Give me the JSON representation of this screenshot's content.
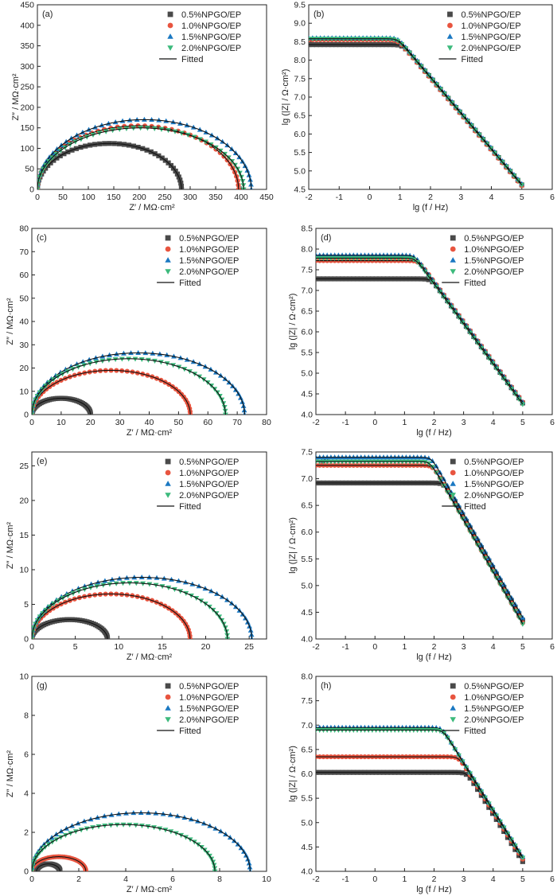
{
  "figure": {
    "colors": {
      "0.5%NPGO/EP": "#4a4a4a",
      "1.0%NPGO/EP": "#e8543f",
      "1.5%NPGO/EP": "#1a78c2",
      "2.0%NPGO/EP": "#3cba7c",
      "Fitted": "#111111"
    },
    "legend_labels": [
      "0.5%NPGO/EP",
      "1.0%NPGO/EP",
      "1.5%NPGO/EP",
      "2.0%NPGO/EP",
      "Fitted"
    ]
  },
  "chart_data": [
    {
      "id": "a",
      "panel_label": "(a)",
      "type": "scatter",
      "kind": "nyquist",
      "xlabel": "Z′ / MΩ·cm²",
      "ylabel": "Z″ / MΩ·cm²",
      "xlim": [
        0,
        450
      ],
      "ylim": [
        0,
        450
      ],
      "xticks": [
        0,
        50,
        100,
        150,
        200,
        250,
        300,
        350,
        400,
        450
      ],
      "yticks": [
        0,
        50,
        100,
        150,
        200,
        250,
        300,
        350,
        400,
        450
      ],
      "legend": "top-right",
      "series": [
        {
          "name": "0.5%NPGO/EP",
          "marker": "square",
          "r0": 0,
          "diameter": 283,
          "peak": 112
        },
        {
          "name": "1.0%NPGO/EP",
          "marker": "circle",
          "r0": 0,
          "diameter": 395,
          "peak": 155
        },
        {
          "name": "1.5%NPGO/EP",
          "marker": "triangle-up",
          "r0": 0,
          "diameter": 420,
          "peak": 170
        },
        {
          "name": "2.0%NPGO/EP",
          "marker": "triangle-down",
          "r0": 0,
          "diameter": 405,
          "peak": 150
        }
      ],
      "fitted": true
    },
    {
      "id": "b",
      "panel_label": "(b)",
      "type": "scatter",
      "kind": "bode",
      "xlabel": "lg (f / Hz)",
      "ylabel": "lg (|Z| / Ω·cm²)",
      "xlim": [
        -2,
        6
      ],
      "ylim": [
        4.5,
        9.5
      ],
      "xticks": [
        -2,
        -1,
        0,
        1,
        2,
        3,
        4,
        5,
        6
      ],
      "yticks": [
        4.5,
        5.0,
        5.5,
        6.0,
        6.5,
        7.0,
        7.5,
        8.0,
        8.5,
        9.0,
        9.5
      ],
      "legend": "top-right",
      "series": [
        {
          "name": "0.5%NPGO/EP",
          "marker": "square",
          "plateau": 8.42,
          "end": 4.62
        },
        {
          "name": "1.0%NPGO/EP",
          "marker": "circle",
          "plateau": 8.55,
          "end": 4.6
        },
        {
          "name": "1.5%NPGO/EP",
          "marker": "triangle-up",
          "plateau": 8.6,
          "end": 4.65
        },
        {
          "name": "2.0%NPGO/EP",
          "marker": "triangle-down",
          "plateau": 8.58,
          "end": 4.62
        }
      ],
      "fitted": true
    },
    {
      "id": "c",
      "panel_label": "(c)",
      "type": "scatter",
      "kind": "nyquist",
      "xlabel": "Z′ / MΩ·cm²",
      "ylabel": "Z″ / MΩ·cm²",
      "xlim": [
        0,
        80
      ],
      "ylim": [
        0,
        80
      ],
      "xticks": [
        0,
        10,
        20,
        30,
        40,
        50,
        60,
        70,
        80
      ],
      "yticks": [
        0,
        10,
        20,
        30,
        40,
        50,
        60,
        70,
        80
      ],
      "legend": "top-right",
      "series": [
        {
          "name": "0.5%NPGO/EP",
          "marker": "square",
          "r0": 0,
          "diameter": 20,
          "peak": 7
        },
        {
          "name": "1.0%NPGO/EP",
          "marker": "circle",
          "r0": 0,
          "diameter": 54,
          "peak": 19
        },
        {
          "name": "1.5%NPGO/EP",
          "marker": "triangle-up",
          "r0": 0,
          "diameter": 72.5,
          "peak": 26.5
        },
        {
          "name": "2.0%NPGO/EP",
          "marker": "triangle-down",
          "r0": 0,
          "diameter": 66,
          "peak": 24
        }
      ],
      "fitted": true
    },
    {
      "id": "d",
      "panel_label": "(d)",
      "type": "scatter",
      "kind": "bode",
      "xlabel": "lg (f / Hz)",
      "ylabel": "lg (|Z| / Ω·cm²)",
      "xlim": [
        -2,
        6
      ],
      "ylim": [
        4.0,
        8.5
      ],
      "xticks": [
        -2,
        -1,
        0,
        1,
        2,
        3,
        4,
        5,
        6
      ],
      "yticks": [
        4.0,
        4.5,
        5.0,
        5.5,
        6.0,
        6.5,
        7.0,
        7.5,
        8.0,
        8.5
      ],
      "legend": "top-right",
      "series": [
        {
          "name": "0.5%NPGO/EP",
          "marker": "square",
          "plateau": 7.28,
          "end": 4.28
        },
        {
          "name": "1.0%NPGO/EP",
          "marker": "circle",
          "plateau": 7.72,
          "end": 4.3
        },
        {
          "name": "1.5%NPGO/EP",
          "marker": "triangle-up",
          "plateau": 7.85,
          "end": 4.3
        },
        {
          "name": "2.0%NPGO/EP",
          "marker": "triangle-down",
          "plateau": 7.78,
          "end": 4.25
        }
      ],
      "fitted": true
    },
    {
      "id": "e",
      "panel_label": "(e)",
      "type": "scatter",
      "kind": "nyquist",
      "xlabel": "Z′ / MΩ·cm²",
      "ylabel": "Z″ / MΩ·cm²",
      "xlim": [
        0,
        27
      ],
      "ylim": [
        0,
        27
      ],
      "xticks": [
        0,
        5,
        10,
        15,
        20,
        25
      ],
      "yticks": [
        0,
        5,
        10,
        15,
        20,
        25
      ],
      "legend": "top-right",
      "series": [
        {
          "name": "0.5%NPGO/EP",
          "marker": "square",
          "r0": 0,
          "diameter": 8.7,
          "peak": 2.8
        },
        {
          "name": "1.0%NPGO/EP",
          "marker": "circle",
          "r0": 0,
          "diameter": 18.2,
          "peak": 6.5
        },
        {
          "name": "1.5%NPGO/EP",
          "marker": "triangle-up",
          "r0": 0,
          "diameter": 25.3,
          "peak": 8.9
        },
        {
          "name": "2.0%NPGO/EP",
          "marker": "triangle-down",
          "r0": 0,
          "diameter": 22.5,
          "peak": 8.1
        }
      ],
      "fitted": true
    },
    {
      "id": "f",
      "panel_label": "(f)",
      "type": "scatter",
      "kind": "bode",
      "xlabel": "lg (f / Hz)",
      "ylabel": "lg (|Z| / Ω·cm²)",
      "xlim": [
        -2,
        6
      ],
      "ylim": [
        4.0,
        7.5
      ],
      "xticks": [
        -2,
        -1,
        0,
        1,
        2,
        3,
        4,
        5,
        6
      ],
      "yticks": [
        4.0,
        4.5,
        5.0,
        5.5,
        6.0,
        6.5,
        7.0,
        7.5
      ],
      "legend": "top-right",
      "series": [
        {
          "name": "0.5%NPGO/EP",
          "marker": "square",
          "plateau": 6.92,
          "end": 4.35
        },
        {
          "name": "1.0%NPGO/EP",
          "marker": "circle",
          "plateau": 7.25,
          "end": 4.3
        },
        {
          "name": "1.5%NPGO/EP",
          "marker": "triangle-up",
          "plateau": 7.4,
          "end": 4.4
        },
        {
          "name": "2.0%NPGO/EP",
          "marker": "triangle-down",
          "plateau": 7.32,
          "end": 4.28
        }
      ],
      "fitted": true
    },
    {
      "id": "g",
      "panel_label": "(g)",
      "type": "scatter",
      "kind": "nyquist",
      "xlabel": "Z′ / MΩ·cm²",
      "ylabel": "Z″ / MΩ·cm²",
      "xlim": [
        0,
        10
      ],
      "ylim": [
        0,
        10
      ],
      "xticks": [
        0,
        2,
        4,
        6,
        8,
        10
      ],
      "yticks": [
        0,
        2,
        4,
        6,
        8,
        10
      ],
      "legend": "top-right",
      "series": [
        {
          "name": "0.5%NPGO/EP",
          "marker": "square",
          "r0": 0.2,
          "diameter": 1.0,
          "peak": 0.38
        },
        {
          "name": "1.0%NPGO/EP",
          "marker": "circle",
          "r0": 0.0,
          "diameter": 2.3,
          "peak": 0.75
        },
        {
          "name": "1.5%NPGO/EP",
          "marker": "triangle-up",
          "r0": 0.0,
          "diameter": 9.3,
          "peak": 3.0
        },
        {
          "name": "2.0%NPGO/EP",
          "marker": "triangle-down",
          "r0": 0.0,
          "diameter": 7.8,
          "peak": 2.4
        }
      ],
      "fitted": true
    },
    {
      "id": "h",
      "panel_label": "(h)",
      "type": "scatter",
      "kind": "bode",
      "xlabel": "lg (f / Hz)",
      "ylabel": "lg (|Z| / Ω·cm²)",
      "xlim": [
        -2,
        6
      ],
      "ylim": [
        4.0,
        8.0
      ],
      "xticks": [
        -2,
        -1,
        0,
        1,
        2,
        3,
        4,
        5,
        6
      ],
      "yticks": [
        4.0,
        4.5,
        5.0,
        5.5,
        6.0,
        6.5,
        7.0,
        7.5,
        8.0
      ],
      "legend": "top-right",
      "series": [
        {
          "name": "0.5%NPGO/EP",
          "marker": "square",
          "plateau": 6.03,
          "end": 4.2
        },
        {
          "name": "1.0%NPGO/EP",
          "marker": "circle",
          "plateau": 6.35,
          "end": 4.25
        },
        {
          "name": "1.5%NPGO/EP",
          "marker": "triangle-up",
          "plateau": 6.95,
          "end": 4.3
        },
        {
          "name": "2.0%NPGO/EP",
          "marker": "triangle-down",
          "plateau": 6.9,
          "end": 4.28
        }
      ],
      "fitted": true
    }
  ]
}
